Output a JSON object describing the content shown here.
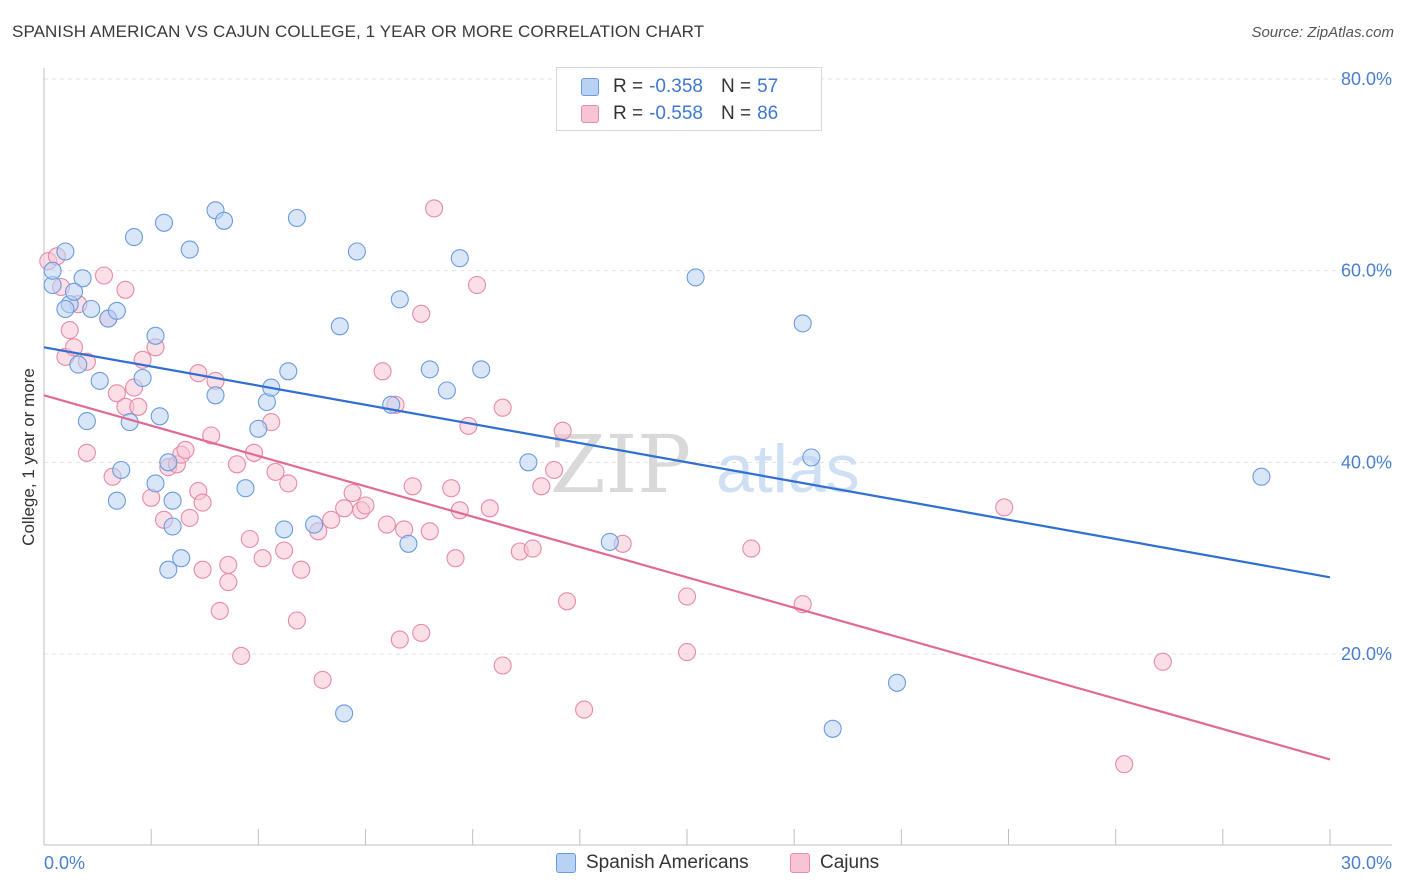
{
  "title": "SPANISH AMERICAN VS CAJUN COLLEGE, 1 YEAR OR MORE CORRELATION CHART",
  "source": "Source: ZipAtlas.com",
  "watermark": {
    "zip": "ZIP",
    "atlas": "atlas"
  },
  "legend": {
    "series1": {
      "r_label": "R =",
      "r_value": "-0.358",
      "n_label": "N =",
      "n_value": "57"
    },
    "series2": {
      "r_label": "R =",
      "r_value": "-0.558",
      "n_label": "N =",
      "n_value": "86"
    }
  },
  "bottom_legend": {
    "series1": "Spanish Americans",
    "series2": "Cajuns"
  },
  "colors": {
    "blue": "#6a9be0",
    "blue_fill": "#b9d1f3",
    "blue_line": "#2f6fd0",
    "pink": "#e88aa8",
    "pink_fill": "#f7c4d4",
    "pink_line": "#e06a93",
    "grid": "#e2e2e2"
  },
  "chart_data": {
    "type": "scatter",
    "title": "SPANISH AMERICAN VS CAJUN COLLEGE, 1 YEAR OR MORE CORRELATION CHART",
    "xlabel": "",
    "ylabel": "College, 1 year or more",
    "xlim": [
      0,
      30
    ],
    "ylim": [
      0,
      82
    ],
    "x_tick_labels": [
      "0.0%",
      "30.0%"
    ],
    "y_ticks": [
      20,
      40,
      60,
      80
    ],
    "y_tick_labels": [
      "20.0%",
      "40.0%",
      "60.0%",
      "80.0%"
    ],
    "series": [
      {
        "name": "Spanish Americans",
        "trend": {
          "x": [
            0,
            30
          ],
          "y": [
            52.0,
            28.0
          ]
        },
        "points": [
          [
            0.2,
            58.5
          ],
          [
            0.2,
            60.0
          ],
          [
            0.5,
            62.0
          ],
          [
            0.6,
            56.5
          ],
          [
            0.5,
            56.0
          ],
          [
            0.9,
            59.2
          ],
          [
            0.7,
            57.8
          ],
          [
            1.1,
            56.0
          ],
          [
            0.8,
            50.2
          ],
          [
            1.3,
            48.5
          ],
          [
            1.0,
            44.3
          ],
          [
            1.5,
            55.0
          ],
          [
            1.7,
            55.8
          ],
          [
            2.1,
            63.5
          ],
          [
            2.3,
            48.8
          ],
          [
            2.0,
            44.2
          ],
          [
            1.8,
            39.2
          ],
          [
            1.7,
            36.0
          ],
          [
            2.6,
            53.2
          ],
          [
            2.8,
            65.0
          ],
          [
            2.7,
            44.8
          ],
          [
            2.9,
            40.0
          ],
          [
            2.6,
            37.8
          ],
          [
            3.0,
            33.3
          ],
          [
            3.4,
            62.2
          ],
          [
            3.2,
            30.0
          ],
          [
            2.9,
            28.8
          ],
          [
            4.0,
            66.3
          ],
          [
            4.2,
            65.2
          ],
          [
            4.0,
            47.0
          ],
          [
            4.7,
            37.3
          ],
          [
            5.0,
            43.5
          ],
          [
            5.2,
            46.3
          ],
          [
            5.3,
            47.8
          ],
          [
            5.7,
            49.5
          ],
          [
            5.6,
            33.0
          ],
          [
            5.9,
            65.5
          ],
          [
            6.3,
            33.5
          ],
          [
            6.9,
            54.2
          ],
          [
            7.3,
            62.0
          ],
          [
            8.3,
            57.0
          ],
          [
            8.1,
            46.0
          ],
          [
            8.5,
            31.5
          ],
          [
            9.0,
            49.7
          ],
          [
            9.4,
            47.5
          ],
          [
            9.7,
            61.3
          ],
          [
            10.2,
            49.7
          ],
          [
            11.3,
            40.0
          ],
          [
            13.2,
            31.7
          ],
          [
            15.2,
            59.3
          ],
          [
            17.7,
            54.5
          ],
          [
            17.9,
            40.5
          ],
          [
            18.4,
            12.2
          ],
          [
            19.9,
            17.0
          ],
          [
            28.4,
            38.5
          ],
          [
            7.0,
            13.8
          ],
          [
            3.0,
            36.0
          ]
        ]
      },
      {
        "name": "Cajuns",
        "trend": {
          "x": [
            0,
            30
          ],
          "y": [
            47.0,
            9.0
          ]
        },
        "points": [
          [
            0.1,
            61.0
          ],
          [
            0.3,
            61.5
          ],
          [
            0.4,
            58.3
          ],
          [
            0.5,
            51.0
          ],
          [
            0.6,
            53.8
          ],
          [
            0.7,
            52.0
          ],
          [
            0.8,
            56.5
          ],
          [
            1.0,
            50.5
          ],
          [
            1.0,
            41.0
          ],
          [
            1.4,
            59.5
          ],
          [
            1.5,
            55.0
          ],
          [
            1.6,
            38.5
          ],
          [
            1.7,
            47.2
          ],
          [
            1.9,
            58.0
          ],
          [
            1.9,
            45.8
          ],
          [
            2.1,
            47.8
          ],
          [
            2.2,
            45.8
          ],
          [
            2.3,
            50.7
          ],
          [
            2.5,
            36.3
          ],
          [
            2.6,
            52.0
          ],
          [
            2.8,
            34.0
          ],
          [
            2.9,
            39.5
          ],
          [
            3.1,
            39.8
          ],
          [
            3.2,
            40.8
          ],
          [
            3.3,
            41.3
          ],
          [
            3.4,
            34.2
          ],
          [
            3.6,
            49.3
          ],
          [
            3.6,
            37.0
          ],
          [
            3.7,
            35.8
          ],
          [
            3.7,
            28.8
          ],
          [
            3.9,
            42.8
          ],
          [
            4.0,
            48.5
          ],
          [
            4.1,
            24.5
          ],
          [
            4.3,
            27.5
          ],
          [
            4.3,
            29.3
          ],
          [
            4.5,
            39.8
          ],
          [
            4.6,
            19.8
          ],
          [
            4.8,
            32.0
          ],
          [
            4.9,
            41.0
          ],
          [
            5.1,
            30.0
          ],
          [
            5.3,
            44.2
          ],
          [
            5.4,
            39.0
          ],
          [
            5.6,
            30.8
          ],
          [
            5.7,
            37.8
          ],
          [
            5.9,
            23.5
          ],
          [
            6.0,
            28.8
          ],
          [
            6.4,
            32.8
          ],
          [
            6.5,
            17.3
          ],
          [
            6.7,
            34.0
          ],
          [
            7.0,
            35.2
          ],
          [
            7.2,
            36.8
          ],
          [
            7.4,
            35.0
          ],
          [
            7.5,
            35.5
          ],
          [
            7.9,
            49.5
          ],
          [
            8.0,
            33.5
          ],
          [
            8.2,
            46.0
          ],
          [
            8.3,
            21.5
          ],
          [
            8.4,
            33.0
          ],
          [
            8.6,
            37.5
          ],
          [
            8.8,
            22.2
          ],
          [
            8.8,
            55.5
          ],
          [
            9.0,
            32.8
          ],
          [
            9.1,
            66.5
          ],
          [
            9.5,
            37.3
          ],
          [
            9.6,
            30.0
          ],
          [
            9.7,
            35.0
          ],
          [
            9.9,
            43.8
          ],
          [
            10.1,
            58.5
          ],
          [
            10.4,
            35.2
          ],
          [
            10.7,
            45.7
          ],
          [
            10.7,
            18.8
          ],
          [
            11.1,
            30.7
          ],
          [
            11.4,
            31.0
          ],
          [
            11.6,
            37.5
          ],
          [
            11.9,
            39.2
          ],
          [
            12.1,
            43.3
          ],
          [
            12.2,
            25.5
          ],
          [
            12.6,
            14.2
          ],
          [
            13.5,
            31.5
          ],
          [
            15.0,
            26.0
          ],
          [
            15.0,
            20.2
          ],
          [
            16.5,
            31.0
          ],
          [
            17.7,
            25.2
          ],
          [
            22.4,
            35.3
          ],
          [
            25.2,
            8.5
          ],
          [
            26.1,
            19.2
          ]
        ]
      }
    ]
  }
}
